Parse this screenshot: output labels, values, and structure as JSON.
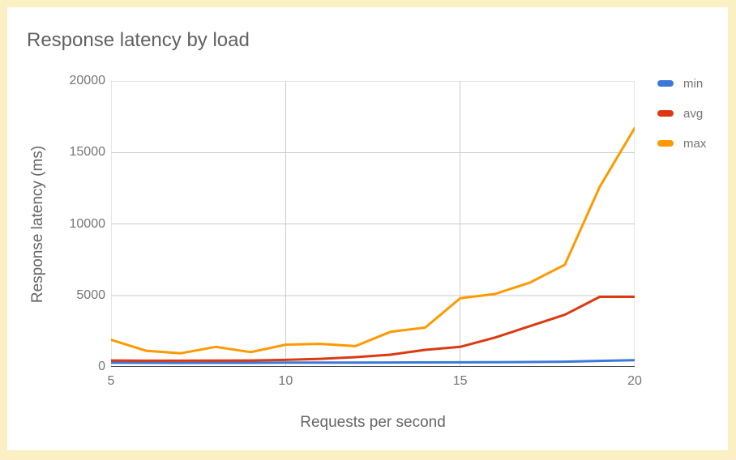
{
  "frame": {
    "border_color": "#FAF0C4",
    "card_background": "#ffffff"
  },
  "chart": {
    "title": "Response latency by load",
    "title_color": "#616161",
    "x_axis_title": "Requests per second",
    "y_axis_title": "Response latency (ms)",
    "tick_color": "#757575",
    "grid_color": "#cccccc",
    "baseline_color": "#424242"
  },
  "legend": {
    "position": "right",
    "items": [
      {
        "label": "min",
        "color": "#3C78D8"
      },
      {
        "label": "avg",
        "color": "#DC3912"
      },
      {
        "label": "max",
        "color": "#FF9900"
      }
    ]
  },
  "chart_data": {
    "type": "line",
    "title": "Response latency by load",
    "xlabel": "Requests per second",
    "ylabel": "Response latency (ms)",
    "x": [
      5,
      6,
      7,
      8,
      9,
      10,
      11,
      12,
      13,
      14,
      15,
      16,
      17,
      18,
      19,
      20
    ],
    "series": [
      {
        "name": "min",
        "color": "#3C78D8",
        "values": [
          290,
          285,
          280,
          285,
          285,
          295,
          300,
          295,
          305,
          310,
          315,
          325,
          340,
          360,
          420,
          470
        ]
      },
      {
        "name": "avg",
        "color": "#DC3912",
        "values": [
          450,
          430,
          430,
          440,
          450,
          490,
          560,
          680,
          850,
          1190,
          1400,
          2050,
          2850,
          3650,
          4900,
          4900
        ]
      },
      {
        "name": "max",
        "color": "#FF9900",
        "values": [
          1900,
          1130,
          950,
          1400,
          1030,
          1550,
          1610,
          1450,
          2450,
          2750,
          4800,
          5100,
          5900,
          7150,
          12600,
          16700
        ]
      }
    ],
    "xlim": [
      5,
      20
    ],
    "ylim": [
      0,
      20000
    ],
    "xticks": [
      5,
      10,
      15,
      20
    ],
    "yticks": [
      0,
      5000,
      10000,
      15000,
      20000
    ],
    "grid": true,
    "legend_position": "right"
  }
}
